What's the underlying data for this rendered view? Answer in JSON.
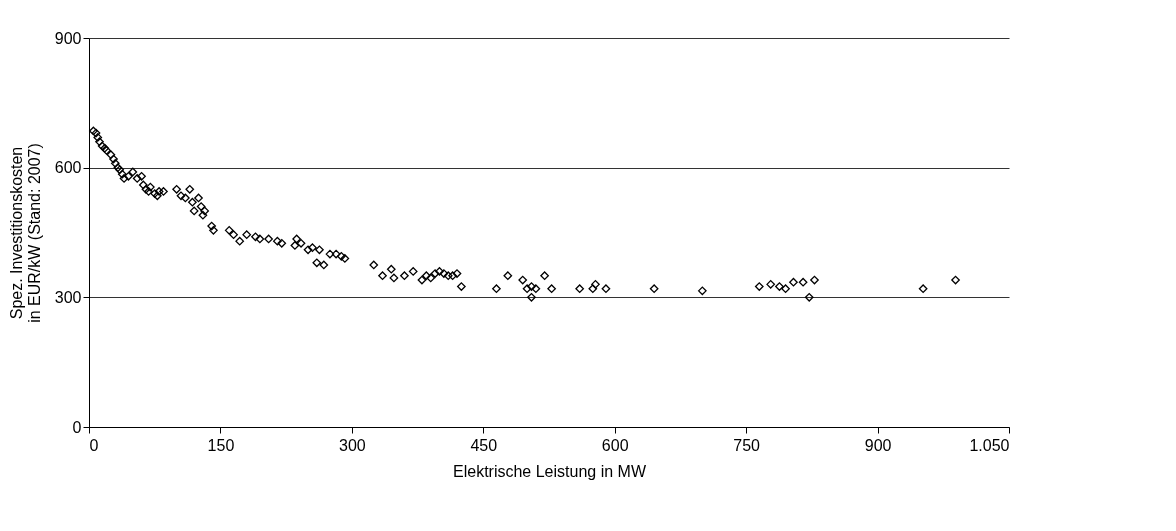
{
  "chart_data": {
    "type": "scatter",
    "xlabel": "Elektrische Leistung in MW",
    "ylabel": "Spez. Investitionskosten in EUR/kW (Stand: 2007)",
    "xlim": [
      0,
      1050
    ],
    "xticks": [
      0,
      150,
      300,
      450,
      600,
      750,
      900,
      {
        "value": 1050,
        "label": "1.050"
      }
    ],
    "ylim": [
      0,
      900
    ],
    "yticks": [
      0,
      300,
      600,
      900
    ],
    "grid": "y",
    "marker": "diamond",
    "legend": false,
    "series": [
      {
        "color": "#000000",
        "x": [
          5,
          8,
          10,
          12,
          15,
          18,
          20,
          25,
          28,
          30,
          33,
          35,
          38,
          40,
          45,
          50,
          55,
          60,
          62,
          65,
          68,
          70,
          75,
          78,
          80,
          85,
          100,
          105,
          110,
          115,
          118,
          120,
          125,
          128,
          130,
          132,
          140,
          142,
          160,
          165,
          172,
          180,
          190,
          195,
          205,
          215,
          220,
          235,
          237,
          242,
          250,
          255,
          260,
          263,
          268,
          275,
          282,
          288,
          292,
          325,
          335,
          345,
          348,
          360,
          370,
          380,
          385,
          390,
          395,
          400,
          405,
          410,
          415,
          420,
          425,
          465,
          478,
          495,
          500,
          505,
          505,
          510,
          520,
          528,
          560,
          575,
          578,
          590,
          645,
          700,
          765,
          778,
          788,
          795,
          804,
          815,
          822,
          828,
          952,
          989
        ],
        "values": [
          685,
          680,
          670,
          660,
          650,
          645,
          640,
          630,
          620,
          610,
          600,
          595,
          585,
          575,
          580,
          590,
          575,
          580,
          560,
          550,
          545,
          555,
          540,
          535,
          545,
          545,
          550,
          535,
          530,
          550,
          520,
          500,
          530,
          510,
          490,
          500,
          465,
          455,
          455,
          445,
          430,
          445,
          440,
          435,
          435,
          430,
          425,
          420,
          435,
          425,
          410,
          415,
          380,
          410,
          375,
          400,
          400,
          395,
          390,
          375,
          350,
          365,
          345,
          350,
          360,
          340,
          350,
          345,
          355,
          360,
          355,
          350,
          350,
          355,
          325,
          320,
          350,
          340,
          320,
          300,
          325,
          320,
          350,
          320,
          320,
          320,
          330,
          320,
          320,
          315,
          325,
          330,
          325,
          320,
          335,
          335,
          300,
          340,
          320,
          340
        ]
      }
    ]
  }
}
